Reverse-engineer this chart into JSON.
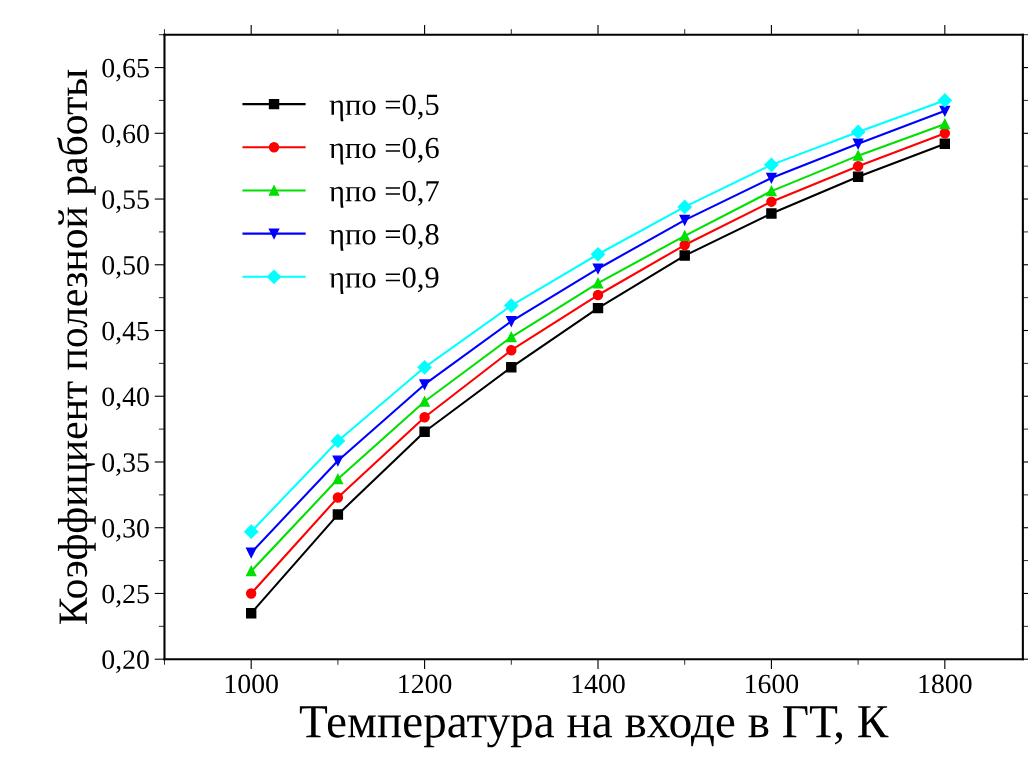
{
  "chart_data": {
    "type": "line",
    "xlabel": "Температура на входе в ГТ, К",
    "ylabel": "Коэффициент полезной работы",
    "x": [
      1000,
      1100,
      1200,
      1300,
      1400,
      1500,
      1600,
      1700,
      1800
    ],
    "series": [
      {
        "name": "ηпо =0,5",
        "color": "#000000",
        "marker": "square",
        "values": [
          0.235,
          0.31,
          0.373,
          0.422,
          0.467,
          0.507,
          0.539,
          0.567,
          0.592
        ]
      },
      {
        "name": "ηпо =0,6",
        "color": "#ff0000",
        "marker": "circle",
        "values": [
          0.25,
          0.323,
          0.384,
          0.435,
          0.477,
          0.515,
          0.548,
          0.575,
          0.6
        ]
      },
      {
        "name": "ηпо =0,7",
        "color": "#00e000",
        "marker": "triangle",
        "values": [
          0.267,
          0.337,
          0.396,
          0.445,
          0.486,
          0.522,
          0.556,
          0.583,
          0.607
        ]
      },
      {
        "name": "ηпо =0,8",
        "color": "#0000ff",
        "marker": "triangle_down",
        "values": [
          0.281,
          0.351,
          0.409,
          0.457,
          0.497,
          0.534,
          0.566,
          0.592,
          0.617
        ]
      },
      {
        "name": "ηпо =0,9",
        "color": "#00ffff",
        "marker": "diamond",
        "values": [
          0.297,
          0.366,
          0.422,
          0.469,
          0.508,
          0.544,
          0.576,
          0.601,
          0.625
        ]
      }
    ],
    "xlim": [
      900,
      1890
    ],
    "xticks": [
      1000,
      1200,
      1400,
      1600,
      1800
    ],
    "ylim": [
      0.2,
      0.675
    ],
    "yticks": [
      {
        "value": 0.2,
        "label": "0,20"
      },
      {
        "value": 0.25,
        "label": "0,25"
      },
      {
        "value": 0.3,
        "label": "0,30"
      },
      {
        "value": 0.35,
        "label": "0,35"
      },
      {
        "value": 0.4,
        "label": "0,40"
      },
      {
        "value": 0.45,
        "label": "0,45"
      },
      {
        "value": 0.5,
        "label": "0,50"
      },
      {
        "value": 0.55,
        "label": "0,55"
      },
      {
        "value": 0.6,
        "label": "0,60"
      },
      {
        "value": 0.65,
        "label": "0,65"
      }
    ],
    "legend": "top left",
    "grid": false,
    "line_style": "solid"
  }
}
